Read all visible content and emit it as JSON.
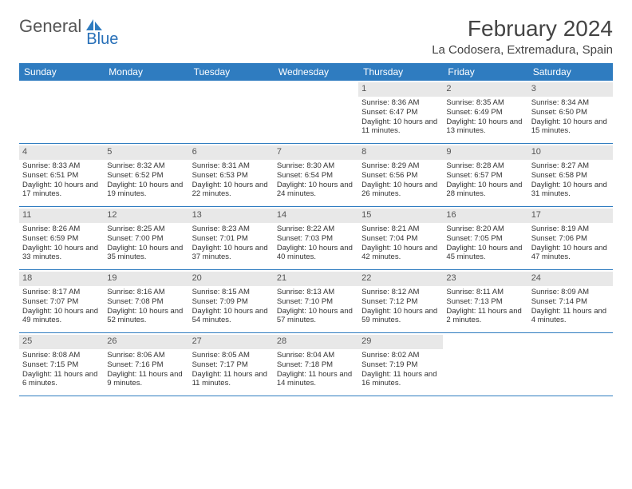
{
  "logo": {
    "text1": "General",
    "text2": "Blue"
  },
  "title": "February 2024",
  "location": "La Codosera, Extremadura, Spain",
  "colors": {
    "header_bg": "#2f7cc0",
    "header_text": "#ffffff",
    "daynum_bg": "#e8e8e8",
    "rule": "#2f7cc0",
    "body_text": "#333333",
    "logo_gray": "#555555",
    "logo_blue": "#2870b8"
  },
  "weekdays": [
    "Sunday",
    "Monday",
    "Tuesday",
    "Wednesday",
    "Thursday",
    "Friday",
    "Saturday"
  ],
  "weeks": [
    [
      {
        "n": "",
        "sr": "",
        "ss": "",
        "dl": ""
      },
      {
        "n": "",
        "sr": "",
        "ss": "",
        "dl": ""
      },
      {
        "n": "",
        "sr": "",
        "ss": "",
        "dl": ""
      },
      {
        "n": "",
        "sr": "",
        "ss": "",
        "dl": ""
      },
      {
        "n": "1",
        "sr": "Sunrise: 8:36 AM",
        "ss": "Sunset: 6:47 PM",
        "dl": "Daylight: 10 hours and 11 minutes."
      },
      {
        "n": "2",
        "sr": "Sunrise: 8:35 AM",
        "ss": "Sunset: 6:49 PM",
        "dl": "Daylight: 10 hours and 13 minutes."
      },
      {
        "n": "3",
        "sr": "Sunrise: 8:34 AM",
        "ss": "Sunset: 6:50 PM",
        "dl": "Daylight: 10 hours and 15 minutes."
      }
    ],
    [
      {
        "n": "4",
        "sr": "Sunrise: 8:33 AM",
        "ss": "Sunset: 6:51 PM",
        "dl": "Daylight: 10 hours and 17 minutes."
      },
      {
        "n": "5",
        "sr": "Sunrise: 8:32 AM",
        "ss": "Sunset: 6:52 PM",
        "dl": "Daylight: 10 hours and 19 minutes."
      },
      {
        "n": "6",
        "sr": "Sunrise: 8:31 AM",
        "ss": "Sunset: 6:53 PM",
        "dl": "Daylight: 10 hours and 22 minutes."
      },
      {
        "n": "7",
        "sr": "Sunrise: 8:30 AM",
        "ss": "Sunset: 6:54 PM",
        "dl": "Daylight: 10 hours and 24 minutes."
      },
      {
        "n": "8",
        "sr": "Sunrise: 8:29 AM",
        "ss": "Sunset: 6:56 PM",
        "dl": "Daylight: 10 hours and 26 minutes."
      },
      {
        "n": "9",
        "sr": "Sunrise: 8:28 AM",
        "ss": "Sunset: 6:57 PM",
        "dl": "Daylight: 10 hours and 28 minutes."
      },
      {
        "n": "10",
        "sr": "Sunrise: 8:27 AM",
        "ss": "Sunset: 6:58 PM",
        "dl": "Daylight: 10 hours and 31 minutes."
      }
    ],
    [
      {
        "n": "11",
        "sr": "Sunrise: 8:26 AM",
        "ss": "Sunset: 6:59 PM",
        "dl": "Daylight: 10 hours and 33 minutes."
      },
      {
        "n": "12",
        "sr": "Sunrise: 8:25 AM",
        "ss": "Sunset: 7:00 PM",
        "dl": "Daylight: 10 hours and 35 minutes."
      },
      {
        "n": "13",
        "sr": "Sunrise: 8:23 AM",
        "ss": "Sunset: 7:01 PM",
        "dl": "Daylight: 10 hours and 37 minutes."
      },
      {
        "n": "14",
        "sr": "Sunrise: 8:22 AM",
        "ss": "Sunset: 7:03 PM",
        "dl": "Daylight: 10 hours and 40 minutes."
      },
      {
        "n": "15",
        "sr": "Sunrise: 8:21 AM",
        "ss": "Sunset: 7:04 PM",
        "dl": "Daylight: 10 hours and 42 minutes."
      },
      {
        "n": "16",
        "sr": "Sunrise: 8:20 AM",
        "ss": "Sunset: 7:05 PM",
        "dl": "Daylight: 10 hours and 45 minutes."
      },
      {
        "n": "17",
        "sr": "Sunrise: 8:19 AM",
        "ss": "Sunset: 7:06 PM",
        "dl": "Daylight: 10 hours and 47 minutes."
      }
    ],
    [
      {
        "n": "18",
        "sr": "Sunrise: 8:17 AM",
        "ss": "Sunset: 7:07 PM",
        "dl": "Daylight: 10 hours and 49 minutes."
      },
      {
        "n": "19",
        "sr": "Sunrise: 8:16 AM",
        "ss": "Sunset: 7:08 PM",
        "dl": "Daylight: 10 hours and 52 minutes."
      },
      {
        "n": "20",
        "sr": "Sunrise: 8:15 AM",
        "ss": "Sunset: 7:09 PM",
        "dl": "Daylight: 10 hours and 54 minutes."
      },
      {
        "n": "21",
        "sr": "Sunrise: 8:13 AM",
        "ss": "Sunset: 7:10 PM",
        "dl": "Daylight: 10 hours and 57 minutes."
      },
      {
        "n": "22",
        "sr": "Sunrise: 8:12 AM",
        "ss": "Sunset: 7:12 PM",
        "dl": "Daylight: 10 hours and 59 minutes."
      },
      {
        "n": "23",
        "sr": "Sunrise: 8:11 AM",
        "ss": "Sunset: 7:13 PM",
        "dl": "Daylight: 11 hours and 2 minutes."
      },
      {
        "n": "24",
        "sr": "Sunrise: 8:09 AM",
        "ss": "Sunset: 7:14 PM",
        "dl": "Daylight: 11 hours and 4 minutes."
      }
    ],
    [
      {
        "n": "25",
        "sr": "Sunrise: 8:08 AM",
        "ss": "Sunset: 7:15 PM",
        "dl": "Daylight: 11 hours and 6 minutes."
      },
      {
        "n": "26",
        "sr": "Sunrise: 8:06 AM",
        "ss": "Sunset: 7:16 PM",
        "dl": "Daylight: 11 hours and 9 minutes."
      },
      {
        "n": "27",
        "sr": "Sunrise: 8:05 AM",
        "ss": "Sunset: 7:17 PM",
        "dl": "Daylight: 11 hours and 11 minutes."
      },
      {
        "n": "28",
        "sr": "Sunrise: 8:04 AM",
        "ss": "Sunset: 7:18 PM",
        "dl": "Daylight: 11 hours and 14 minutes."
      },
      {
        "n": "29",
        "sr": "Sunrise: 8:02 AM",
        "ss": "Sunset: 7:19 PM",
        "dl": "Daylight: 11 hours and 16 minutes."
      },
      {
        "n": "",
        "sr": "",
        "ss": "",
        "dl": ""
      },
      {
        "n": "",
        "sr": "",
        "ss": "",
        "dl": ""
      }
    ]
  ]
}
